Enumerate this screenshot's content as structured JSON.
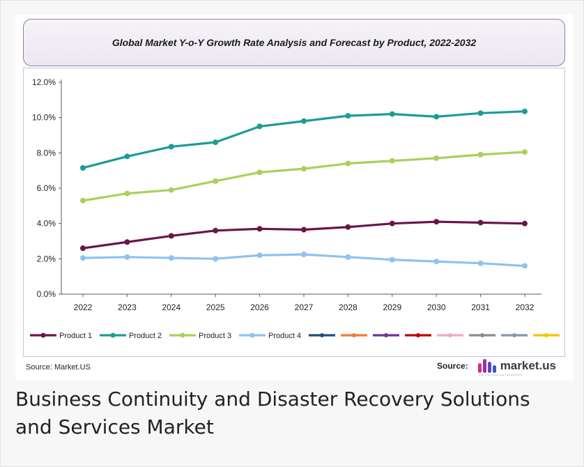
{
  "chart_data": {
    "type": "line",
    "title": "Global Market Y-o-Y  Growth Rate Analysis and Forecast by Product, 2022-2032",
    "xlabel": "",
    "ylabel": "",
    "x": [
      "2022",
      "2023",
      "2024",
      "2025",
      "2026",
      "2027",
      "2028",
      "2029",
      "2030",
      "2031",
      "2032"
    ],
    "ylim": [
      0,
      12
    ],
    "yticks": [
      "0.0%",
      "2.0%",
      "4.0%",
      "6.0%",
      "8.0%",
      "10.0%",
      "12.0%"
    ],
    "grid": false,
    "legend_position": "bottom",
    "series": [
      {
        "name": "Product 1",
        "color": "#6b1549",
        "values": [
          2.6,
          2.95,
          3.3,
          3.6,
          3.7,
          3.65,
          3.8,
          4.0,
          4.1,
          4.05,
          4.0
        ]
      },
      {
        "name": "Product 2",
        "color": "#1b9c98",
        "values": [
          7.15,
          7.8,
          8.35,
          8.6,
          9.5,
          9.8,
          10.1,
          10.2,
          10.05,
          10.25,
          10.35
        ]
      },
      {
        "name": "Product 3",
        "color": "#a9d15b",
        "values": [
          5.3,
          5.7,
          5.9,
          6.4,
          6.9,
          7.1,
          7.4,
          7.55,
          7.7,
          7.9,
          8.05
        ]
      },
      {
        "name": "Product 4",
        "color": "#8ec2f2",
        "values": [
          2.05,
          2.1,
          2.05,
          2.0,
          2.2,
          2.25,
          2.1,
          1.95,
          1.85,
          1.75,
          1.6
        ]
      }
    ],
    "extra_legend_swatches": [
      "#1f4e79",
      "#ed7d31",
      "#7030a0",
      "#c00000",
      "#f4a6c0",
      "#8c8c8c",
      "#8497b0",
      "#ffc000"
    ]
  },
  "source_left": "Source: Market.US",
  "source_right_label": "Source:",
  "logo_text": "market.us",
  "logo_tagline": "ONE STOP SHOP FOR THE REPORTS",
  "caption": "Business Continuity and Disaster Recovery Solutions and Services Market"
}
